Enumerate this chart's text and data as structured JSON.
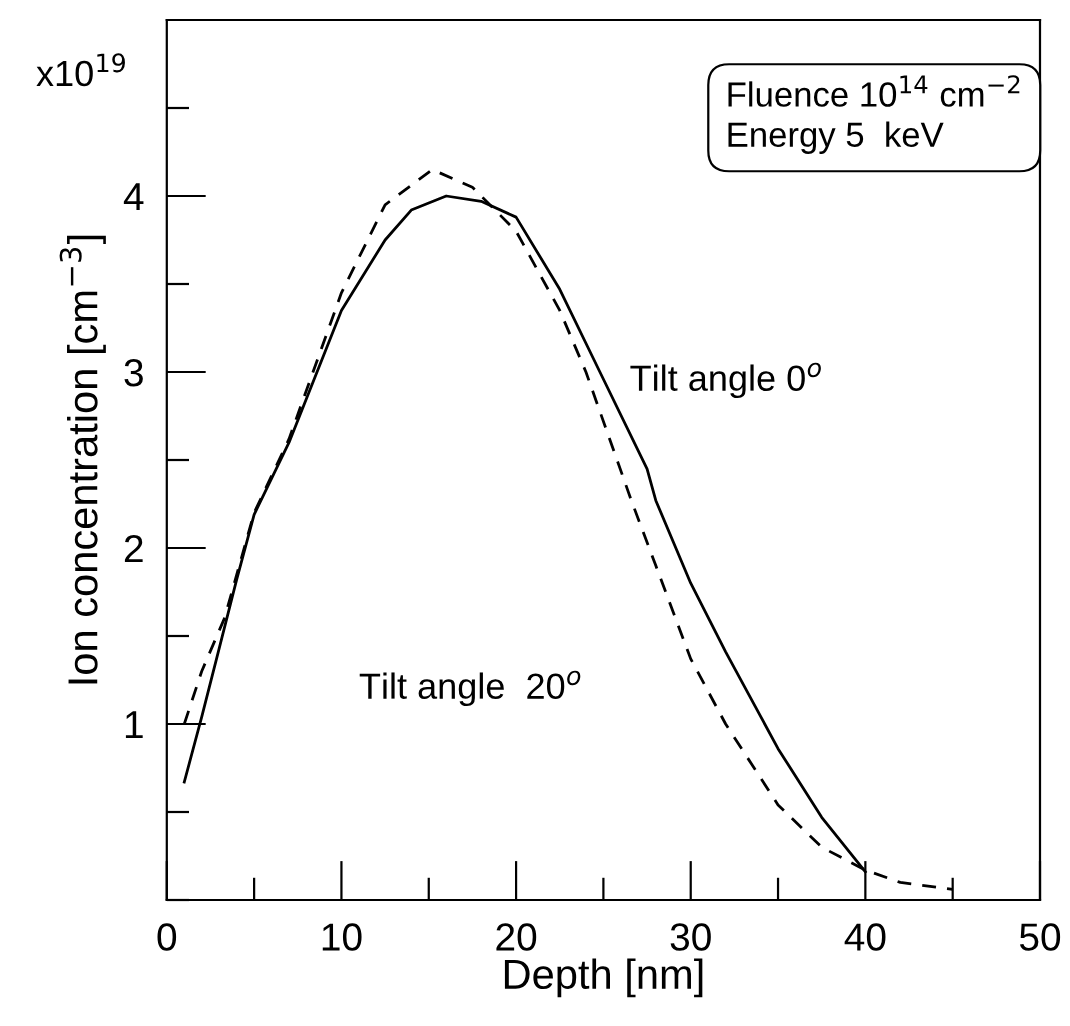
{
  "chart_data": {
    "type": "line",
    "xlabel": "Depth [nm]",
    "ylabel": "Ion concentration [cm$^{−3}$]",
    "xlim": [
      0,
      50
    ],
    "ylim": [
      0,
      5
    ],
    "xticks": [
      0,
      {
        "value": 5,
        "label": null
      },
      10,
      {
        "value": 15,
        "label": null
      },
      20,
      {
        "value": 25,
        "label": null
      },
      30,
      {
        "value": 35,
        "label": null
      },
      40,
      {
        "value": 45,
        "label": null
      },
      50
    ],
    "yticks": [
      {
        "value": 0,
        "label": null
      },
      {
        "value": 0.5,
        "label": null
      },
      1,
      {
        "value": 1.5,
        "label": null
      },
      2,
      {
        "value": 2.5,
        "label": null
      },
      3,
      {
        "value": 3.5,
        "label": null
      },
      4,
      {
        "value": 4.5,
        "label": null
      }
    ],
    "grid": false,
    "legend": false,
    "series": [
      {
        "color": "#000000",
        "line_style": "solid",
        "x": [
          1,
          2,
          3,
          4,
          5,
          7,
          10,
          12.5,
          14,
          16,
          18,
          20,
          22.5,
          24.8,
          27.5,
          28,
          30,
          32,
          35,
          37.5,
          40
        ],
        "values": [
          0.67,
          1.04,
          1.43,
          1.82,
          2.19,
          2.6,
          3.35,
          3.75,
          3.92,
          4.0,
          3.97,
          3.88,
          3.47,
          3.0,
          2.45,
          2.27,
          1.8,
          1.41,
          0.86,
          0.47,
          0.16
        ]
      },
      {
        "color": "#000000",
        "line_style": "dashed",
        "x": [
          1,
          2,
          3.3,
          5,
          7,
          10,
          12.5,
          15.2,
          17.5,
          20,
          22.5,
          24,
          26.6,
          28,
          30,
          32,
          35,
          37.5,
          40,
          42,
          45
        ],
        "values": [
          1.0,
          1.3,
          1.6,
          2.2,
          2.62,
          3.45,
          3.95,
          4.15,
          4.05,
          3.8,
          3.35,
          3.0,
          2.27,
          1.9,
          1.37,
          1.0,
          0.54,
          0.3,
          0.17,
          0.1,
          0.06
        ]
      }
    ],
    "annotations": [
      "x10$^{19}$",
      "Fluence 10$^{14}$ cm$^{−2}$\nEnergy 5  keV",
      "Tilt angle 0$^{o}$",
      "Tilt angle  20$^{o}$"
    ]
  }
}
